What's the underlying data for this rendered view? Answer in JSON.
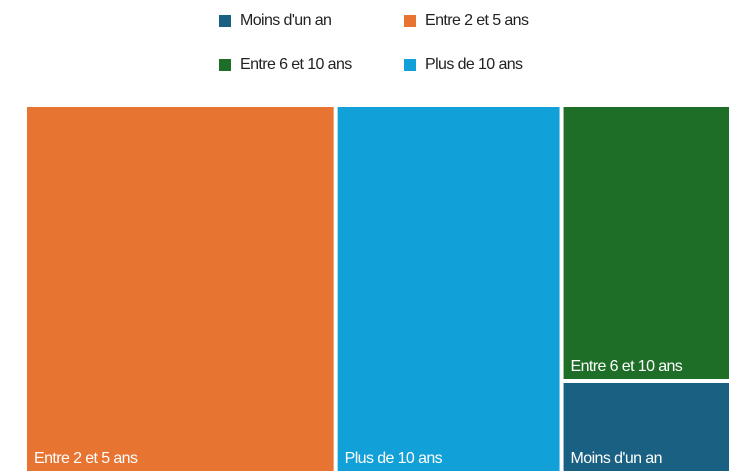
{
  "chart_data": {
    "type": "treemap",
    "categories": [
      "Moins d'un an",
      "Entre 2 et 5 ans",
      "Entre 6 et 10 ans",
      "Plus de 10 ans"
    ],
    "values": [
      6,
      44,
      18,
      32
    ],
    "colors": [
      "#1a6082",
      "#e87432",
      "#1e6e27",
      "#12a0d8"
    ]
  }
}
